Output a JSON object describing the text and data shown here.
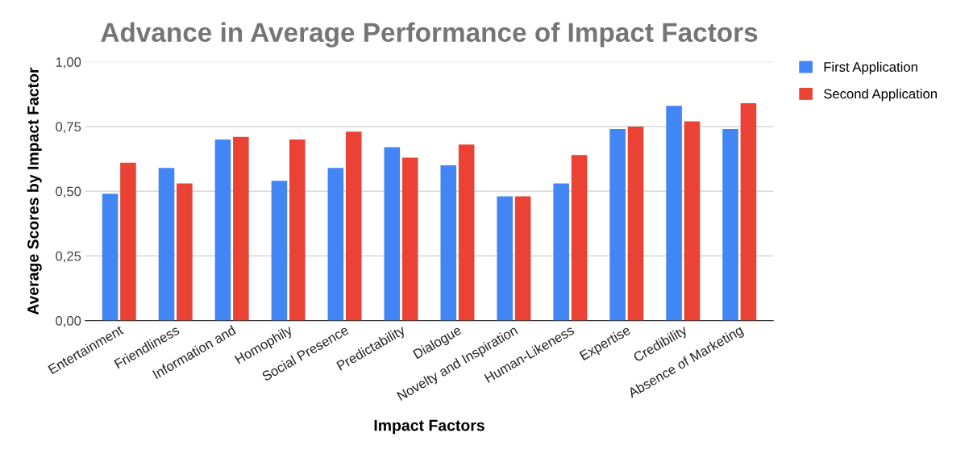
{
  "chart_data": {
    "type": "bar",
    "title": "Advance in Average Performance of Impact Factors",
    "xlabel": "Impact Factors",
    "ylabel": "Average Scores by Impact Factor",
    "categories": [
      "Entertainment",
      "Friendliness",
      "Information and",
      "Homophily",
      "Social Presence",
      "Predictability",
      "Dialogue",
      "Novelty and Inspiration",
      "Human-Likeness",
      "Expertise",
      "Credibility",
      "Absence of Marketing"
    ],
    "series": [
      {
        "name": "First Application",
        "color": "#4285f4",
        "values": [
          0.49,
          0.59,
          0.7,
          0.54,
          0.59,
          0.67,
          0.6,
          0.48,
          0.53,
          0.74,
          0.83,
          0.74
        ]
      },
      {
        "name": "Second Application",
        "color": "#ea4335",
        "values": [
          0.61,
          0.53,
          0.71,
          0.7,
          0.73,
          0.63,
          0.68,
          0.48,
          0.64,
          0.75,
          0.77,
          0.84
        ]
      }
    ],
    "ylim": [
      0,
      1
    ],
    "yticks": [
      {
        "value": 0,
        "label": "0,00"
      },
      {
        "value": 0.25,
        "label": "0,25"
      },
      {
        "value": 0.5,
        "label": "0,50"
      },
      {
        "value": 0.75,
        "label": "0,75"
      },
      {
        "value": 1,
        "label": "1,00"
      }
    ],
    "grid": "y",
    "legend": "top right"
  }
}
